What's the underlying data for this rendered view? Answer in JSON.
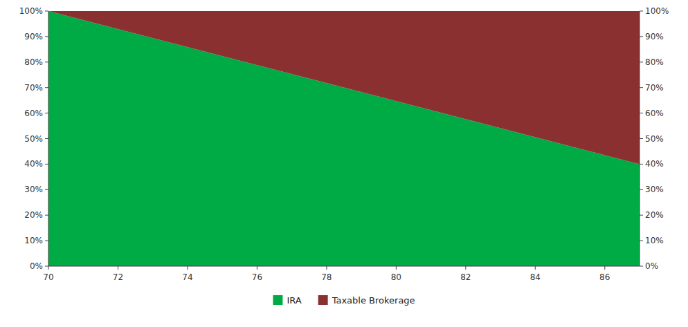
{
  "chart_data": {
    "type": "area",
    "stacked": true,
    "x": [
      70,
      87
    ],
    "series": [
      {
        "name": "IRA",
        "color": "#00AA44",
        "values": [
          1.0,
          0.4
        ]
      },
      {
        "name": "Taxable Brokerage",
        "color": "#8B3030",
        "values": [
          0.0,
          0.6
        ]
      }
    ],
    "xlim": [
      70,
      87
    ],
    "xticks": [
      70,
      72,
      74,
      76,
      78,
      80,
      82,
      84,
      86
    ],
    "ylim": [
      0.0,
      1.0
    ],
    "yticks": [
      {
        "value": 0.0,
        "label": "0%"
      },
      {
        "value": 0.1,
        "label": "10%"
      },
      {
        "value": 0.2,
        "label": "20%"
      },
      {
        "value": 0.3,
        "label": "30%"
      },
      {
        "value": 0.4,
        "label": "40%"
      },
      {
        "value": 0.5,
        "label": "50%"
      },
      {
        "value": 0.6,
        "label": "60%"
      },
      {
        "value": 0.7,
        "label": "70%"
      },
      {
        "value": 0.8,
        "label": "80%"
      },
      {
        "value": 0.9,
        "label": "90%"
      },
      {
        "value": 1.0,
        "label": "100%"
      }
    ],
    "y2lim": [
      0.0,
      1.0
    ],
    "y2ticks": [
      {
        "value": 0.0,
        "label": "0%"
      },
      {
        "value": 0.1,
        "label": "10%"
      },
      {
        "value": 0.2,
        "label": "20%"
      },
      {
        "value": 0.3,
        "label": "30%"
      },
      {
        "value": 0.4,
        "label": "40%"
      },
      {
        "value": 0.5,
        "label": "50%"
      },
      {
        "value": 0.6,
        "label": "60%"
      },
      {
        "value": 0.7,
        "label": "70%"
      },
      {
        "value": 0.8,
        "label": "80%"
      },
      {
        "value": 0.9,
        "label": "90%"
      },
      {
        "value": 1.0,
        "label": "100%"
      }
    ],
    "grid": false,
    "legend": "bottom"
  }
}
